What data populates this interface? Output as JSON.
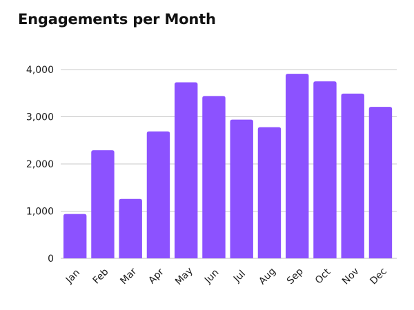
{
  "chart_data": {
    "type": "bar",
    "title": "Engagements per Month",
    "xlabel": "",
    "ylabel": "",
    "categories": [
      "Jan",
      "Feb",
      "Mar",
      "Apr",
      "May",
      "Jun",
      "Jul",
      "Aug",
      "Sep",
      "Oct",
      "Nov",
      "Dec"
    ],
    "values": [
      940,
      2290,
      1260,
      2690,
      3730,
      3440,
      2940,
      2780,
      3910,
      3750,
      3490,
      3210
    ],
    "ylim": [
      0,
      4000
    ],
    "yticks": [
      0,
      1000,
      2000,
      3000,
      4000
    ],
    "ytick_labels": [
      "0",
      "1,000",
      "2,000",
      "3,000",
      "4,000"
    ],
    "grid": true,
    "legend": "none",
    "bar_color": "#8c52ff"
  }
}
